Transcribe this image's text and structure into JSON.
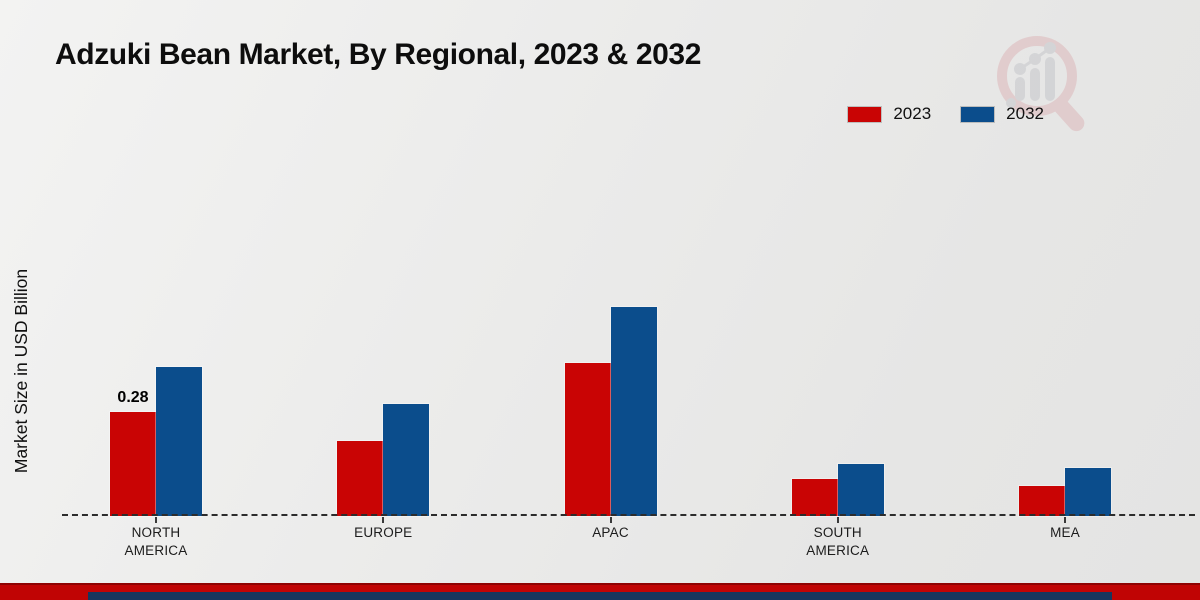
{
  "title": "Adzuki Bean Market, By Regional, 2023 & 2032",
  "ylabel": "Market Size in USD Billion",
  "legend": [
    {
      "label": "2023",
      "color": "#c90404"
    },
    {
      "label": "2032",
      "color": "#0b4d8c"
    }
  ],
  "colors": {
    "series_2023": "#c90404",
    "series_2032": "#0b4d8c",
    "footer_red": "#c00404",
    "footer_navy": "#17365d",
    "axis_dash": "#2c2c2c"
  },
  "watermark": {
    "name": "magnifier-growth-chart-logo"
  },
  "chart_data": {
    "type": "bar",
    "title": "Adzuki Bean Market, By Regional, 2023 & 2032",
    "xlabel": "",
    "ylabel": "Market Size in USD Billion",
    "categories": [
      "NORTH\nAMERICA",
      "EUROPE",
      "APAC",
      "SOUTH\nAMERICA",
      "MEA"
    ],
    "series": [
      {
        "name": "2023",
        "values": [
          0.28,
          0.2,
          0.41,
          0.1,
          0.08
        ]
      },
      {
        "name": "2032",
        "values": [
          0.4,
          0.3,
          0.56,
          0.14,
          0.13
        ]
      }
    ],
    "bar_label": {
      "category_index": 0,
      "series_index": 0,
      "text": "0.28"
    },
    "ylim": [
      0,
      0.62
    ],
    "grid": false,
    "legend_position": "top-right",
    "baseline": "dashed"
  }
}
